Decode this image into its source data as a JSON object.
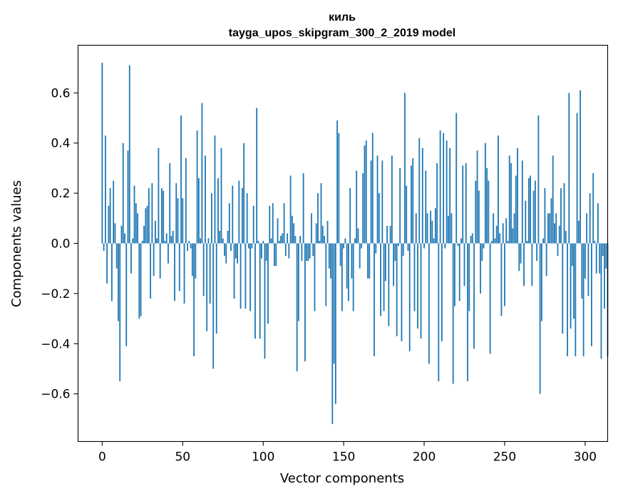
{
  "chart_data": {
    "type": "bar",
    "title": "киль",
    "subtitle": "tayga_upos_skipgram_300_2_2019 model",
    "xlabel": "Vector components",
    "ylabel": "Components values",
    "xlim": [
      -15,
      314
    ],
    "ylim": [
      -0.79,
      0.79
    ],
    "xticks": [
      0,
      50,
      100,
      150,
      200,
      250,
      300
    ],
    "xtick_labels": [
      "0",
      "50",
      "100",
      "150",
      "200",
      "250",
      "300"
    ],
    "yticks": [
      -0.6,
      -0.4,
      -0.2,
      0.0,
      0.2,
      0.4,
      0.6
    ],
    "ytick_labels": [
      "−0.6",
      "−0.4",
      "−0.2",
      "0.0",
      "0.2",
      "0.4",
      "0.6"
    ],
    "bar_color": "#1f77b4",
    "grid": false,
    "values": [
      0.72,
      -0.03,
      0.43,
      -0.16,
      0.15,
      0.22,
      -0.23,
      0.25,
      0.08,
      -0.1,
      -0.31,
      -0.55,
      0.07,
      0.4,
      0.04,
      -0.41,
      0.37,
      0.71,
      -0.12,
      0.02,
      0.23,
      0.16,
      0.12,
      -0.3,
      -0.29,
      0.01,
      0.07,
      0.14,
      0.15,
      0.22,
      -0.22,
      0.24,
      -0.13,
      0.09,
      0.02,
      0.38,
      -0.14,
      0.22,
      0.21,
      0.01,
      0.04,
      -0.08,
      0.32,
      0.03,
      0.05,
      -0.23,
      0.24,
      0.18,
      -0.19,
      0.51,
      0.18,
      -0.24,
      0.34,
      -0.03,
      0.01,
      -0.02,
      -0.13,
      -0.45,
      -0.14,
      0.45,
      0.26,
      0.02,
      0.56,
      -0.21,
      0.35,
      -0.35,
      0.02,
      -0.24,
      0.2,
      -0.5,
      0.43,
      -0.36,
      0.26,
      0.05,
      0.38,
      0.02,
      -0.05,
      -0.08,
      0.05,
      0.16,
      -0.03,
      0.23,
      -0.22,
      -0.06,
      -0.08,
      0.25,
      -0.26,
      0.22,
      0.4,
      -0.26,
      0.2,
      -0.02,
      -0.27,
      -0.02,
      0.15,
      -0.38,
      0.54,
      0.01,
      -0.38,
      -0.06,
      0.01,
      -0.46,
      -0.07,
      -0.32,
      0.15,
      0.02,
      0.16,
      -0.09,
      -0.09,
      0.1,
      0.01,
      0.03,
      0.04,
      0.16,
      -0.05,
      0.04,
      -0.06,
      0.27,
      0.11,
      0.08,
      0.03,
      -0.51,
      -0.31,
      0.03,
      -0.07,
      0.28,
      -0.47,
      -0.07,
      -0.07,
      -0.06,
      0.12,
      -0.05,
      -0.27,
      0.08,
      0.2,
      0.01,
      0.24,
      0.07,
      0.03,
      -0.25,
      0.09,
      -0.1,
      -0.14,
      -0.72,
      -0.48,
      -0.64,
      0.49,
      0.44,
      -0.09,
      -0.27,
      -0.02,
      0.02,
      -0.18,
      -0.23,
      0.22,
      -0.14,
      -0.27,
      0.02,
      0.29,
      0.06,
      -0.1,
      -0.02,
      0.28,
      0.39,
      0.41,
      -0.14,
      -0.14,
      0.33,
      0.44,
      -0.45,
      -0.04,
      0.35,
      0.2,
      -0.29,
      0.33,
      -0.27,
      -0.15,
      0.07,
      -0.33,
      0.07,
      0.35,
      -0.17,
      -0.07,
      -0.37,
      -0.01,
      0.3,
      -0.39,
      -0.05,
      0.6,
      0.23,
      -0.03,
      -0.43,
      0.31,
      0.34,
      -0.27,
      0.12,
      -0.34,
      0.42,
      -0.38,
      0.38,
      -0.02,
      0.29,
      0.12,
      -0.48,
      0.13,
      0.09,
      0.02,
      0.14,
      0.32,
      -0.55,
      0.45,
      -0.39,
      0.44,
      -0.02,
      0.41,
      0.11,
      0.38,
      0.12,
      -0.56,
      -0.25,
      0.52,
      -0.01,
      -0.23,
      0.02,
      0.31,
      -0.17,
      0.32,
      -0.55,
      -0.27,
      0.03,
      0.04,
      -0.42,
      0.25,
      0.37,
      0.21,
      -0.2,
      -0.07,
      -0.02,
      0.4,
      0.3,
      0.25,
      -0.44,
      0.01,
      0.12,
      0.02,
      0.07,
      0.43,
      0.04,
      -0.29,
      0.08,
      -0.25,
      0.1,
      0.01,
      0.35,
      0.32,
      0.06,
      0.12,
      0.27,
      0.38,
      -0.11,
      -0.08,
      0.33,
      -0.17,
      0.17,
      0.01,
      0.26,
      0.27,
      -0.17,
      0.21,
      0.25,
      -0.07,
      0.51,
      -0.6,
      -0.31,
      0.02,
      0.22,
      -0.13,
      0.12,
      0.12,
      0.18,
      0.35,
      0.08,
      0.12,
      -0.05,
      0.07,
      0.22,
      -0.36,
      0.24,
      0.05,
      -0.45,
      0.6,
      -0.34,
      -0.09,
      -0.3,
      -0.45,
      0.52,
      0.09,
      0.61,
      -0.22,
      -0.45,
      -0.14,
      0.12,
      -0.21,
      0.2,
      -0.41,
      0.28,
      0.01,
      -0.12,
      0.16,
      -0.12,
      -0.46,
      -0.05,
      -0.26,
      -0.1,
      -0.45
    ]
  }
}
